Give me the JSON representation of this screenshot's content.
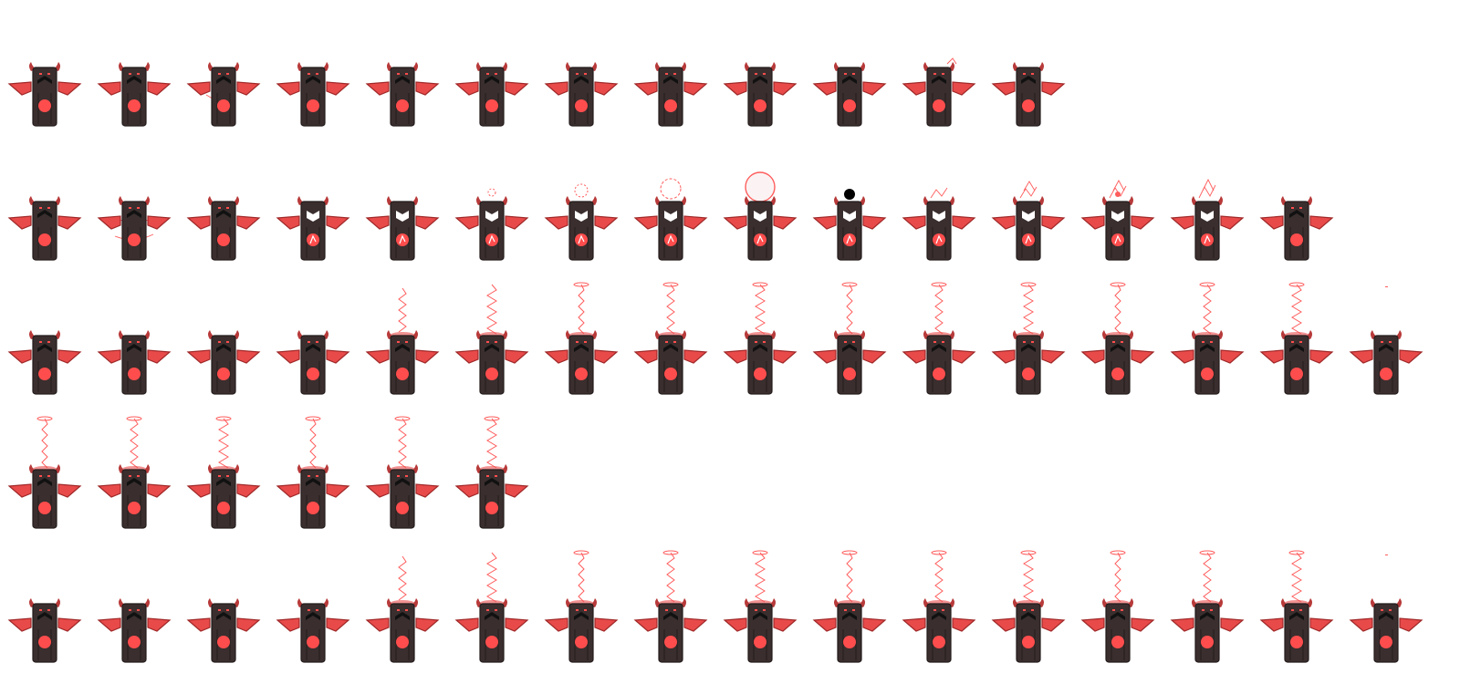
{
  "sheet": {
    "palette": {
      "body": "#3a2e2e",
      "body_dark": "#241c1c",
      "wing": "#e84a4a",
      "wing_dark": "#a02828",
      "horn": "#b83a3a",
      "core": "#ff4d4d",
      "face": "#111111",
      "spark": "#ff5c5c",
      "white": "#ffffff",
      "orb": "#000000"
    },
    "rows": [
      {
        "name": "idle-sparks",
        "frames": [
          "idle",
          "spark-small",
          "spark-side",
          "idle",
          "spark-left",
          "idle",
          "idle",
          "spark-center",
          "spark-center-low",
          "idle",
          "spark-horn",
          "idle"
        ]
      },
      {
        "name": "charge-orb",
        "frames": [
          "idle",
          "spark-ring",
          "spark-low",
          "white-mask",
          "white-mask-core",
          "orb-1",
          "orb-2",
          "orb-3",
          "orb-4",
          "orb-dark",
          "burst-1",
          "burst-2",
          "burst-3",
          "burst-4",
          "idle"
        ]
      },
      {
        "name": "beam-cast-a",
        "frames": [
          "idle",
          "idle",
          "idle",
          "idle",
          "beam-1",
          "beam-2",
          "beam-3",
          "beam-4",
          "beam-5",
          "beam-6",
          "beam-7",
          "beam-8",
          "beam-9",
          "beam-10",
          "beam-11",
          "beam-end"
        ]
      },
      {
        "name": "beam-loop",
        "frames": [
          "beam-6",
          "beam-7",
          "beam-8",
          "beam-9",
          "beam-10",
          "beam-11"
        ]
      },
      {
        "name": "beam-cast-b",
        "frames": [
          "idle",
          "idle",
          "idle",
          "idle",
          "beam-1",
          "beam-2",
          "beam-3",
          "beam-4",
          "beam-5",
          "beam-6",
          "beam-7",
          "beam-8",
          "beam-9",
          "beam-10",
          "beam-11",
          "beam-end"
        ]
      }
    ]
  }
}
